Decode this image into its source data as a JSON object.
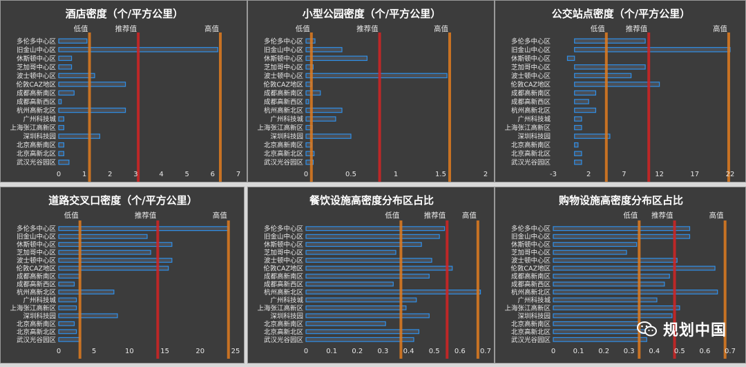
{
  "chart_data": [
    {
      "type": "bar",
      "title": "酒店密度（个/平方公里）",
      "categories": [
        "多伦多中心区",
        "旧金山中心区",
        "休斯顿中心区",
        "芝加哥中心区",
        "波士顿中心区",
        "伦敦CAZ地区",
        "成都高新南区",
        "成都高新西区",
        "杭州高新北区",
        "广州科技城",
        "上海张江高新区",
        "深圳科技园",
        "北京高新南区",
        "北京高新北区",
        "武汉光谷园区"
      ],
      "values": [
        1.1,
        6.2,
        0.5,
        0.5,
        1.4,
        2.6,
        0.6,
        0.1,
        2.6,
        0.2,
        0.2,
        1.6,
        0.2,
        0.2,
        0.4
      ],
      "xlim": [
        0,
        7
      ],
      "ticks": [
        "0",
        "1",
        "2",
        "3",
        "4",
        "5",
        "6",
        "7"
      ],
      "reference_lines": [
        {
          "label": "低值",
          "value": 1.2,
          "color": "#e07b1f"
        },
        {
          "label": "推荐值",
          "value": 3.1,
          "color": "#d42323"
        },
        {
          "label": "高值",
          "value": 6.3,
          "color": "#e07b1f"
        }
      ]
    },
    {
      "type": "bar",
      "title": "小型公园密度（个/平方公里）",
      "categories": [
        "多伦多中心区",
        "旧金山中心区",
        "休斯顿中心区",
        "芝加哥中心区",
        "波士顿中心区",
        "伦敦CAZ地区",
        "成都高新南区",
        "成都高新西区",
        "杭州高新北区",
        "广州科技城",
        "上海张江高新区",
        "深圳科技园",
        "北京高新南区",
        "北京高新北区",
        "武汉光谷园区"
      ],
      "values": [
        0.1,
        0.4,
        0.68,
        0.08,
        1.57,
        0.06,
        0.16,
        0.03,
        0.4,
        0.33,
        0.07,
        0.5,
        0.06,
        0.09,
        0.08
      ],
      "xlim": [
        0,
        2
      ],
      "ticks": [
        "0",
        "0.5",
        "1",
        "1.5",
        "2"
      ],
      "reference_lines": [
        {
          "label": "低值",
          "value": 0.06,
          "color": "#e07b1f"
        },
        {
          "label": "推荐值",
          "value": 0.82,
          "color": "#d42323"
        },
        {
          "label": "高值",
          "value": 1.6,
          "color": "#e07b1f"
        }
      ]
    },
    {
      "type": "bar",
      "title": "公交站点密度（个/平方公里）",
      "categories": [
        "多伦多中心区",
        "旧金山中心区",
        "休斯顿中心区",
        "芝加哥中心区",
        "波士顿中心区",
        "伦敦CAZ地区",
        "成都高新南区",
        "成都高新西区",
        "杭州高新北区",
        "广州科技城",
        "上海张江高新区",
        "深圳科技园",
        "北京高新南区",
        "北京高新北区",
        "武汉光谷园区"
      ],
      "values": [
        10,
        22,
        -1,
        10,
        8,
        12,
        3,
        2,
        3,
        1,
        1,
        5,
        0.5,
        1,
        1
      ],
      "xlim": [
        -3,
        22
      ],
      "ticks": [
        "-3",
        "2",
        "7",
        "12",
        "17",
        "22"
      ],
      "reference_lines": [
        {
          "label": "低值",
          "value": 4.5,
          "color": "#e07b1f"
        },
        {
          "label": "推荐值",
          "value": 10.5,
          "color": "#d42323"
        },
        {
          "label": "高值",
          "value": 21.8,
          "color": "#e07b1f"
        }
      ]
    },
    {
      "type": "bar",
      "title": "道路交叉口密度（个/平方公里）",
      "categories": [
        "多伦多中心区",
        "旧金山中心区",
        "休斯顿中心区",
        "芝加哥中心区",
        "波士顿中心区",
        "伦敦CAZ地区",
        "成都高新南区",
        "成都高新西区",
        "杭州高新北区",
        "广州科技城",
        "上海张江高新区",
        "深圳科技园",
        "北京高新南区",
        "北京高新北区",
        "武汉光谷园区"
      ],
      "values": [
        24,
        12.5,
        16,
        13,
        16,
        15.5,
        3,
        2.2,
        7.8,
        2.5,
        2.5,
        8.3,
        2.2,
        2.5,
        3
      ],
      "xlim": [
        0,
        25
      ],
      "ticks": [
        "0",
        "5",
        "10",
        "15",
        "20",
        "25"
      ],
      "reference_lines": [
        {
          "label": "低值",
          "value": 3,
          "color": "#e07b1f"
        },
        {
          "label": "推荐值",
          "value": 14,
          "color": "#d42323"
        },
        {
          "label": "高值",
          "value": 24,
          "color": "#e07b1f"
        }
      ]
    },
    {
      "type": "bar",
      "title": "餐饮设施高密度分布区占比",
      "categories": [
        "多伦多中心区",
        "旧金山中心区",
        "休斯顿中心区",
        "芝加哥中心区",
        "波士顿中心区",
        "伦敦CAZ地区",
        "成都高新南区",
        "成都高新西区",
        "杭州高新北区",
        "广州科技城",
        "上海张江高新区",
        "深圳科技园",
        "北京高新南区",
        "北京高新北区",
        "武汉光谷园区"
      ],
      "values": [
        0.54,
        0.52,
        0.45,
        0.35,
        0.49,
        0.57,
        0.48,
        0.34,
        0.68,
        0.43,
        0.39,
        0.48,
        0.31,
        0.44,
        0.42
      ],
      "xlim": [
        0,
        0.7
      ],
      "ticks": [
        "0",
        "0.1",
        "0.2",
        "0.3",
        "0.4",
        "0.5",
        "0.6",
        "0.7"
      ],
      "reference_lines": [
        {
          "label": "低值",
          "value": 0.37,
          "color": "#e07b1f"
        },
        {
          "label": "推荐值",
          "value": 0.55,
          "color": "#d42323"
        },
        {
          "label": "高值",
          "value": 0.67,
          "color": "#e07b1f"
        }
      ]
    },
    {
      "type": "bar",
      "title": "购物设施高密度分布区占比",
      "categories": [
        "多伦多中心区",
        "旧金山中心区",
        "休斯顿中心区",
        "芝加哥中心区",
        "波士顿中心区",
        "伦敦CAZ地区",
        "成都高新南区",
        "成都高新西区",
        "杭州高新北区",
        "广州科技城",
        "上海张江高新区",
        "深圳科技园",
        "北京高新南区",
        "北京高新北区",
        "武汉光谷园区"
      ],
      "values": [
        0.54,
        0.54,
        0.33,
        0.29,
        0.49,
        0.64,
        0.46,
        0.44,
        0.65,
        0.41,
        0.5,
        0.47,
        0.34,
        0.39,
        0.37
      ],
      "xlim": [
        0,
        0.7
      ],
      "ticks": [
        "0",
        "0.1",
        "0.2",
        "0.3",
        "0.4",
        "0.5",
        "0.6",
        "0.7"
      ],
      "reference_lines": [
        {
          "label": "低值",
          "value": 0.34,
          "color": "#e07b1f"
        },
        {
          "label": "推荐值",
          "value": 0.48,
          "color": "#d42323"
        },
        {
          "label": "高值",
          "value": 0.68,
          "color": "#e07b1f"
        }
      ]
    }
  ],
  "colors": {
    "panel_bg": "#3c3c3c",
    "bar_fill": "#4a4f57",
    "bar_stroke": "#2f8fe8",
    "text": "#e8e8e8",
    "low_high_line": "#e07b1f",
    "recommended_line": "#d42323"
  },
  "watermark": {
    "icon": "wechat-icon",
    "text": "规划中国"
  }
}
